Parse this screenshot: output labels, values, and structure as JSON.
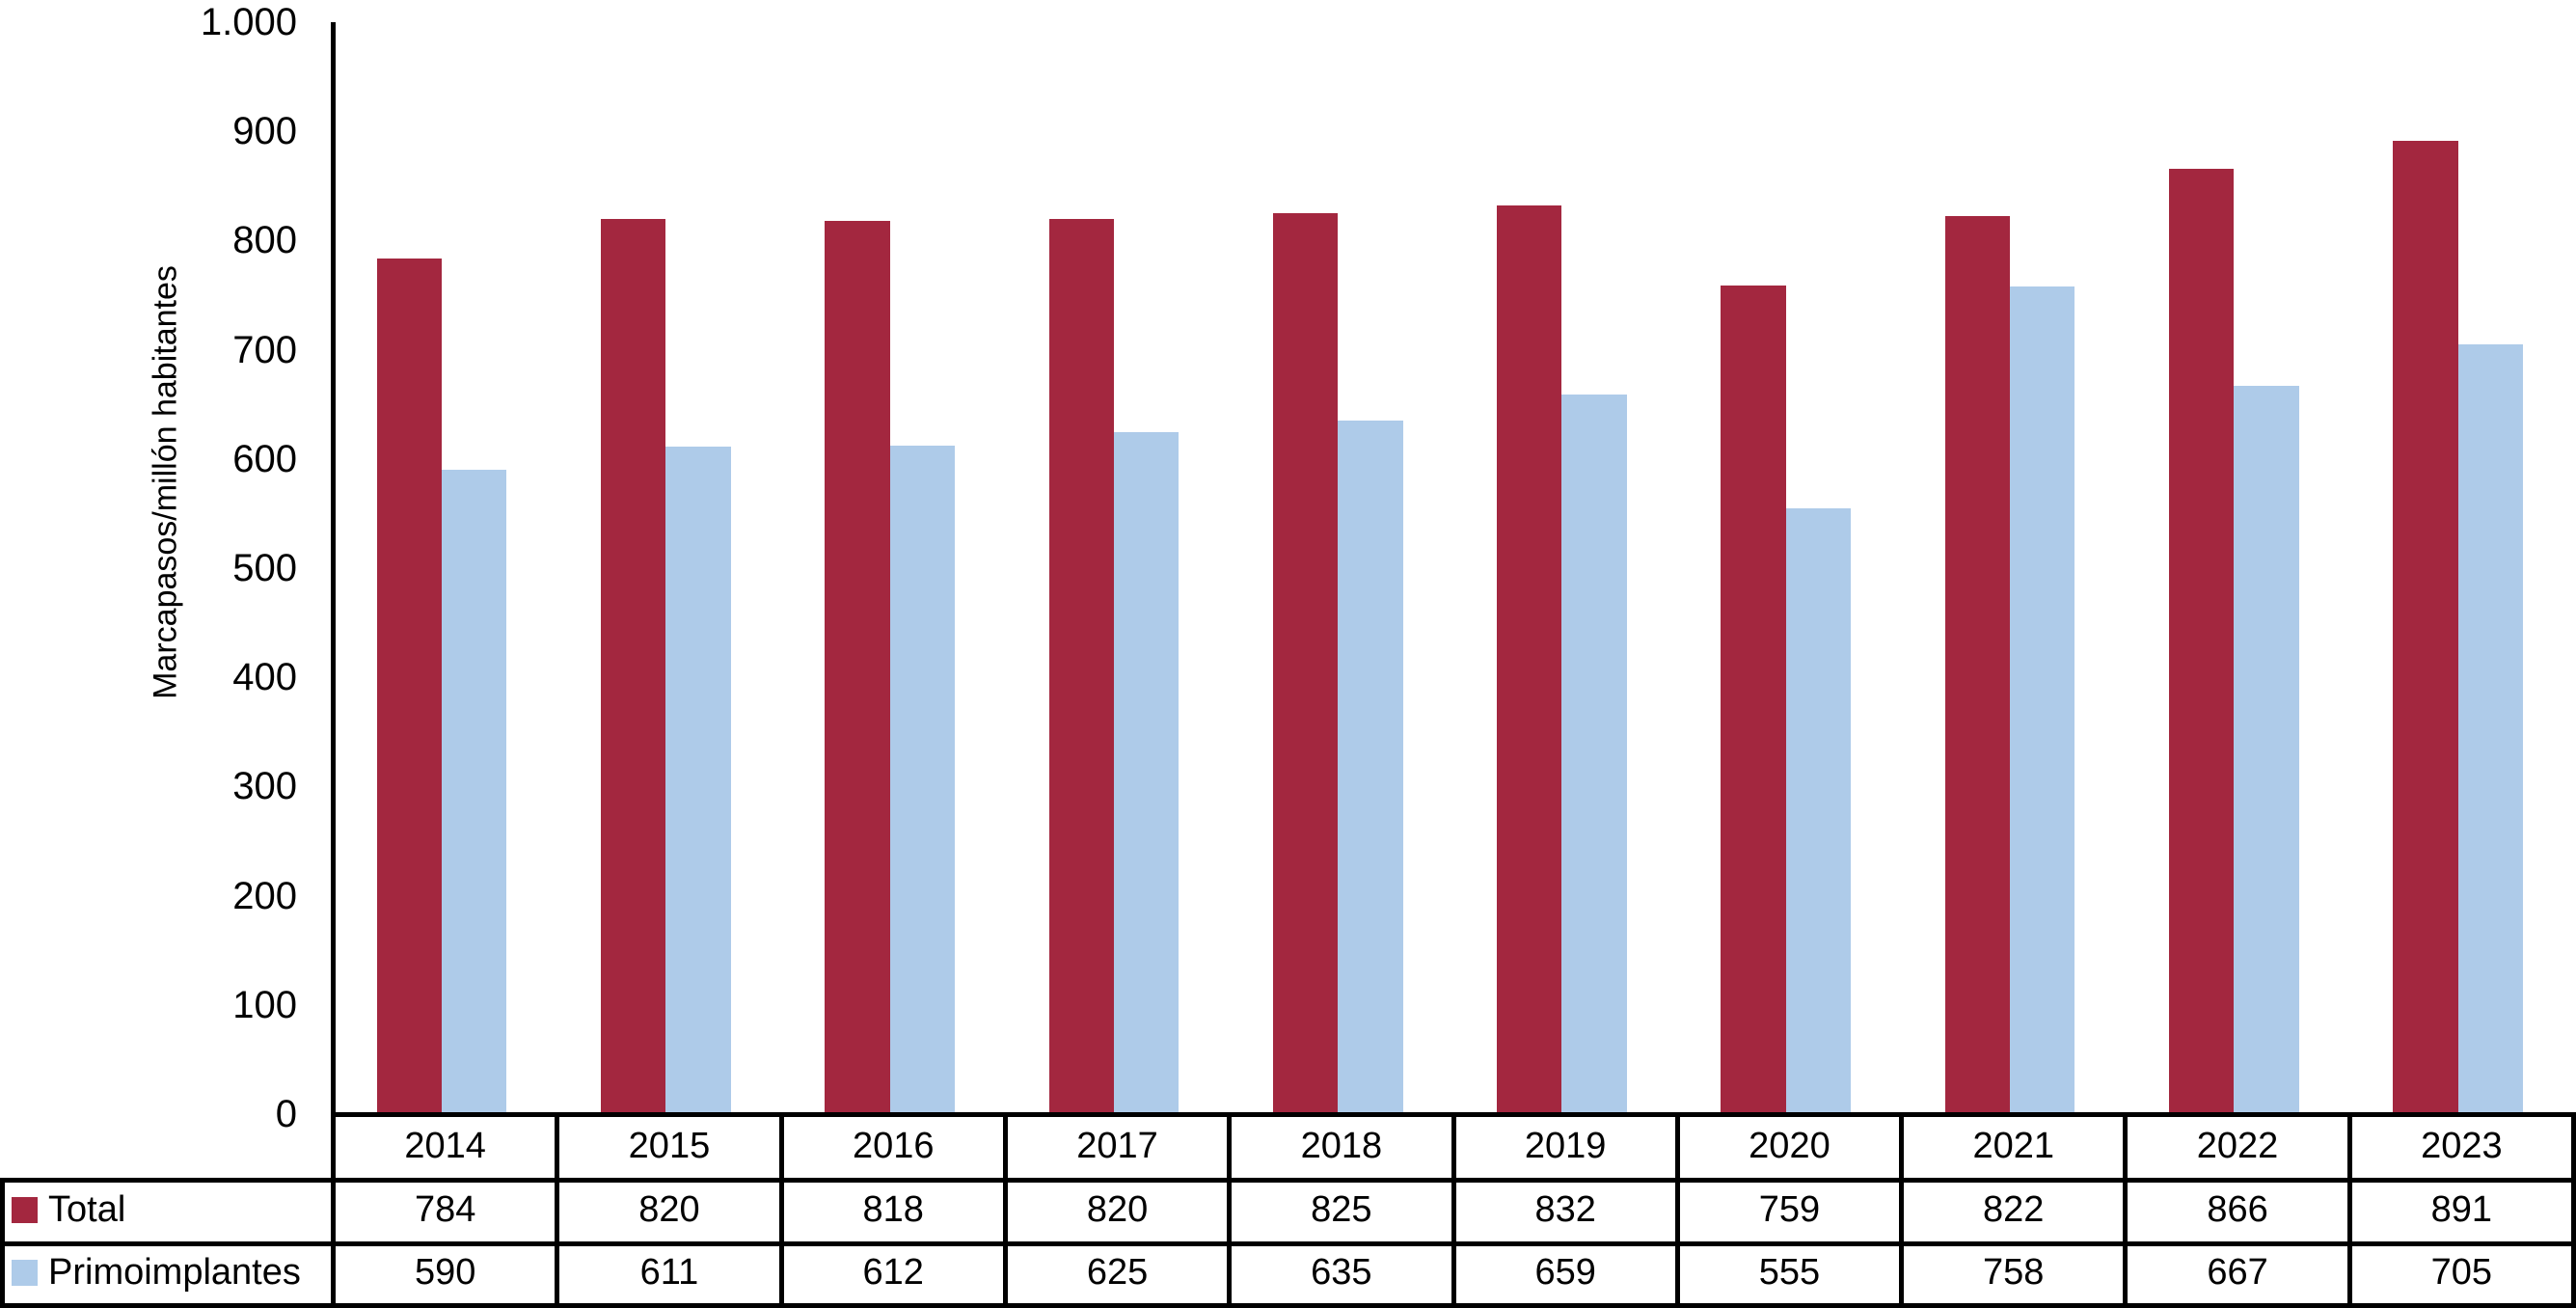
{
  "figure": {
    "background": "#FFFFFF",
    "axis_color": "#000000",
    "table_border_color": "#000000",
    "text_color": "#000000"
  },
  "chart_data": {
    "type": "bar",
    "title": "",
    "xlabel": "",
    "ylabel": "Marcapasos/millón habitantes",
    "categories": [
      "2014",
      "2015",
      "2016",
      "2017",
      "2018",
      "2019",
      "2020",
      "2021",
      "2022",
      "2023"
    ],
    "series": [
      {
        "name": "Total",
        "color": "#A3273F",
        "values": [
          784,
          820,
          818,
          820,
          825,
          832,
          759,
          822,
          866,
          891
        ]
      },
      {
        "name": "Primoimplantes",
        "color": "#AECBE9",
        "values": [
          590,
          611,
          612,
          625,
          635,
          659,
          555,
          758,
          667,
          705
        ]
      }
    ],
    "ylim": [
      0,
      1000
    ],
    "ytick_interval": 100,
    "ytick_labels": [
      "0",
      "100",
      "200",
      "300",
      "400",
      "500",
      "600",
      "700",
      "800",
      "900",
      "1.000"
    ],
    "grid": false,
    "legend_position": "table-rows-left",
    "data_table_shown": true
  }
}
